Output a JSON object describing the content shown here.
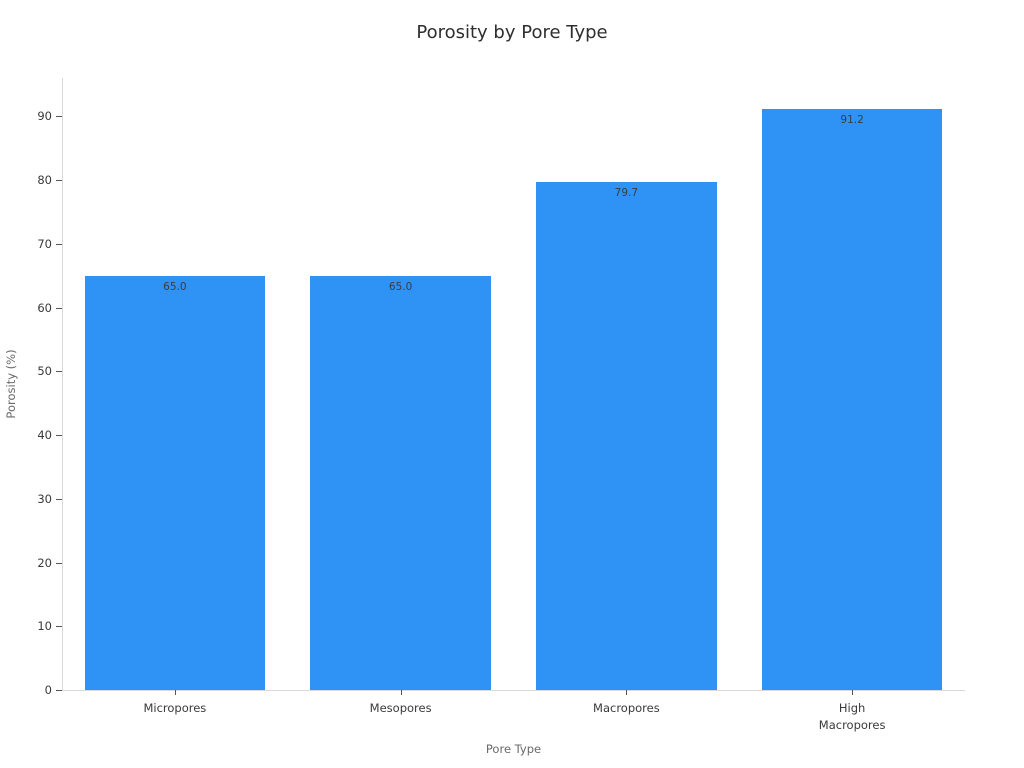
{
  "chart_data": {
    "type": "bar",
    "title": "Porosity by Pore Type",
    "xlabel": "Pore Type",
    "ylabel": "Porosity (%)",
    "categories": [
      "Micropores",
      "Mesopores",
      "Macropores",
      "High\nMacropores"
    ],
    "values": [
      65.0,
      65.0,
      79.7,
      91.2
    ],
    "value_labels": [
      "65.0",
      "65.0",
      "79.7",
      "91.2"
    ],
    "ylim": [
      0,
      96
    ],
    "yticks": [
      0,
      10,
      20,
      30,
      40,
      50,
      60,
      70,
      80,
      90
    ],
    "grid": "off",
    "legend": "none",
    "bar_width_fraction": 0.8,
    "colors": {
      "bar_fill": "#2e93f5",
      "title_text": "#2e2e2e",
      "tick_label_text": "#3a3a3a",
      "axis_label_text": "#6a6a6a",
      "spine": "#d9d9d9",
      "tick_mark": "#555555",
      "value_label_text": "#3c3c3c",
      "background": "#ffffff"
    }
  }
}
